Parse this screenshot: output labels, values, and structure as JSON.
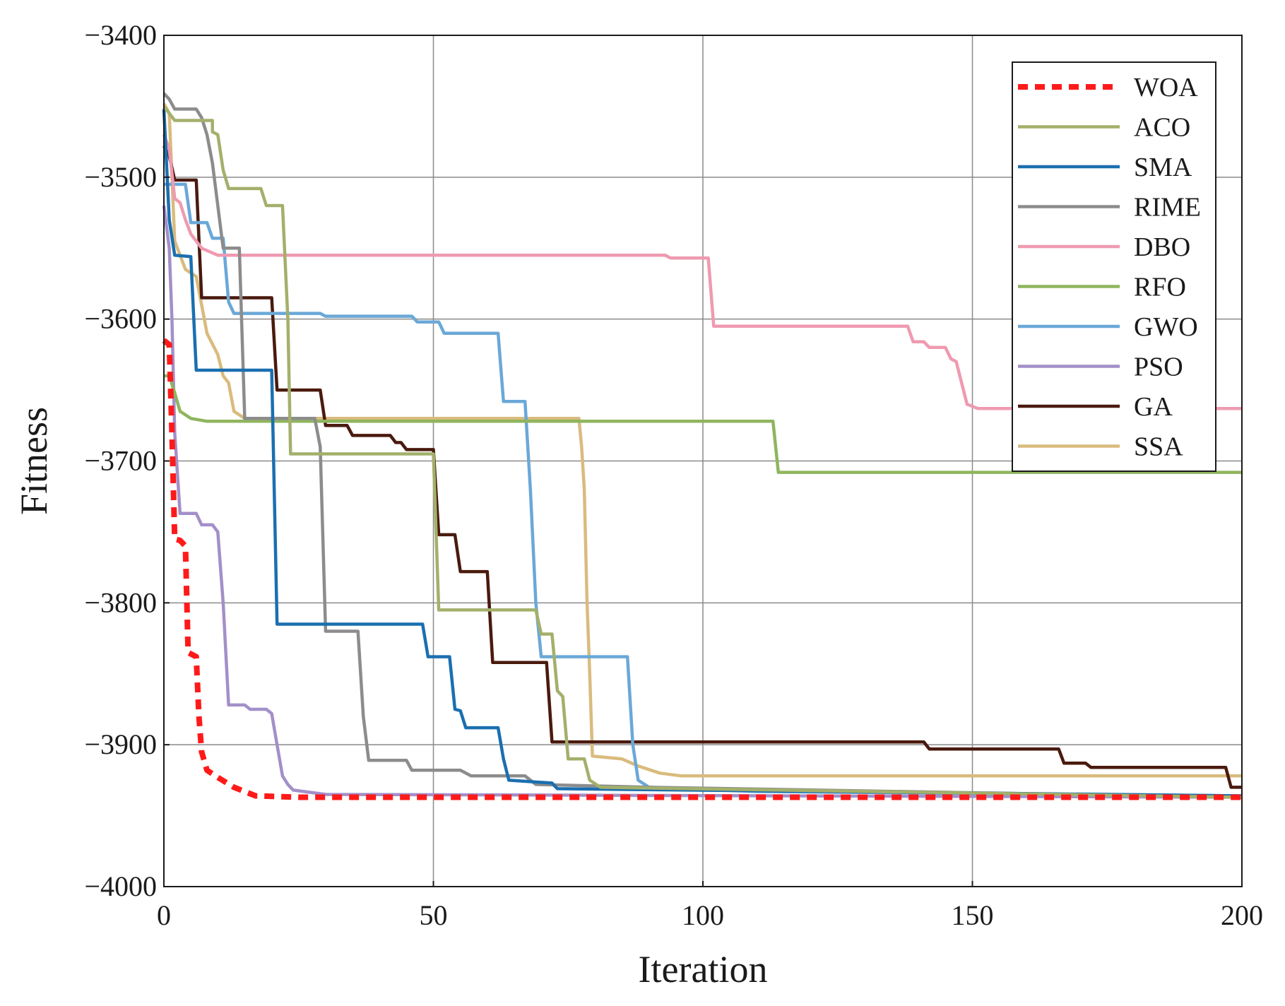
{
  "chart_data": {
    "type": "line",
    "title": "",
    "xlabel": "Iteration",
    "ylabel": "Fitness",
    "xlim": [
      0,
      200
    ],
    "ylim": [
      -4000,
      -3400
    ],
    "grid": true,
    "legend_position": "top-right",
    "x_ticks": [
      {
        "value": 0,
        "label": "0"
      },
      {
        "value": 50,
        "label": "50"
      },
      {
        "value": 100,
        "label": "100"
      },
      {
        "value": 150,
        "label": "150"
      },
      {
        "value": 200,
        "label": "200"
      }
    ],
    "y_ticks": [
      {
        "value": -3400,
        "label": "−3400"
      },
      {
        "value": -3500,
        "label": "−3500"
      },
      {
        "value": -3600,
        "label": "−3600"
      },
      {
        "value": -3700,
        "label": "−3700"
      },
      {
        "value": -3800,
        "label": "−3800"
      },
      {
        "value": -3900,
        "label": "−3900"
      },
      {
        "value": -4000,
        "label": "−4000"
      }
    ],
    "series": [
      {
        "name": "WOA",
        "color": "#ff1a1a",
        "dashed": true,
        "points": [
          [
            0,
            -3615
          ],
          [
            1,
            -3618
          ],
          [
            1.5,
            -3680
          ],
          [
            2,
            -3755
          ],
          [
            3,
            -3756
          ],
          [
            4,
            -3760
          ],
          [
            4.5,
            -3835
          ],
          [
            6,
            -3838
          ],
          [
            6.5,
            -3880
          ],
          [
            7,
            -3905
          ],
          [
            8,
            -3918
          ],
          [
            10,
            -3923
          ],
          [
            13,
            -3930
          ],
          [
            17,
            -3936
          ],
          [
            25,
            -3937
          ],
          [
            200,
            -3937
          ]
        ]
      },
      {
        "name": "ACO",
        "color": "#a3b06b",
        "dashed": false,
        "points": [
          [
            0,
            -3450
          ],
          [
            2,
            -3460
          ],
          [
            9,
            -3460
          ],
          [
            9,
            -3468
          ],
          [
            10,
            -3470
          ],
          [
            11,
            -3495
          ],
          [
            12,
            -3508
          ],
          [
            18,
            -3508
          ],
          [
            19,
            -3520
          ],
          [
            22,
            -3520
          ],
          [
            23,
            -3600
          ],
          [
            23.5,
            -3695
          ],
          [
            50,
            -3695
          ],
          [
            51,
            -3805
          ],
          [
            69,
            -3805
          ],
          [
            70,
            -3822
          ],
          [
            72,
            -3822
          ],
          [
            73,
            -3862
          ],
          [
            74,
            -3866
          ],
          [
            75,
            -3910
          ],
          [
            78,
            -3910
          ],
          [
            79,
            -3925
          ],
          [
            81,
            -3930
          ],
          [
            200,
            -3937
          ]
        ]
      },
      {
        "name": "SMA",
        "color": "#1a6fb0",
        "dashed": false,
        "points": [
          [
            0,
            -3452
          ],
          [
            1,
            -3530
          ],
          [
            2,
            -3555
          ],
          [
            5,
            -3556
          ],
          [
            6,
            -3636
          ],
          [
            20,
            -3636
          ],
          [
            21,
            -3815
          ],
          [
            48,
            -3815
          ],
          [
            49,
            -3838
          ],
          [
            53,
            -3838
          ],
          [
            54,
            -3875
          ],
          [
            55,
            -3876
          ],
          [
            56,
            -3888
          ],
          [
            62,
            -3888
          ],
          [
            63,
            -3910
          ],
          [
            64,
            -3925
          ],
          [
            72,
            -3927
          ],
          [
            73,
            -3931
          ],
          [
            200,
            -3936
          ]
        ]
      },
      {
        "name": "RIME",
        "color": "#8c8c8c",
        "dashed": false,
        "points": [
          [
            0,
            -3441
          ],
          [
            1,
            -3445
          ],
          [
            2,
            -3452
          ],
          [
            6,
            -3452
          ],
          [
            7,
            -3458
          ],
          [
            8,
            -3470
          ],
          [
            9,
            -3490
          ],
          [
            10,
            -3520
          ],
          [
            11,
            -3550
          ],
          [
            14,
            -3550
          ],
          [
            15,
            -3670
          ],
          [
            28,
            -3670
          ],
          [
            29,
            -3690
          ],
          [
            30,
            -3820
          ],
          [
            33,
            -3820
          ],
          [
            36,
            -3820
          ],
          [
            37,
            -3880
          ],
          [
            38,
            -3911
          ],
          [
            45,
            -3911
          ],
          [
            46,
            -3918
          ],
          [
            55,
            -3918
          ],
          [
            57,
            -3922
          ],
          [
            67,
            -3922
          ],
          [
            69,
            -3928
          ],
          [
            90,
            -3930
          ],
          [
            200,
            -3937
          ]
        ]
      },
      {
        "name": "DBO",
        "color": "#ef9ab0",
        "dashed": false,
        "points": [
          [
            0,
            -3470
          ],
          [
            1,
            -3480
          ],
          [
            2,
            -3515
          ],
          [
            3,
            -3518
          ],
          [
            4,
            -3530
          ],
          [
            5,
            -3540
          ],
          [
            7,
            -3550
          ],
          [
            10,
            -3555
          ],
          [
            93,
            -3555
          ],
          [
            94,
            -3557
          ],
          [
            101,
            -3557
          ],
          [
            102,
            -3605
          ],
          [
            138,
            -3605
          ],
          [
            139,
            -3616
          ],
          [
            141,
            -3616
          ],
          [
            142,
            -3620
          ],
          [
            145,
            -3620
          ],
          [
            146,
            -3628
          ],
          [
            147,
            -3630
          ],
          [
            149,
            -3660
          ],
          [
            151,
            -3663
          ],
          [
            200,
            -3663
          ]
        ]
      },
      {
        "name": "RFO",
        "color": "#8fb55e",
        "dashed": false,
        "points": [
          [
            0,
            -3640
          ],
          [
            1,
            -3640
          ],
          [
            2,
            -3652
          ],
          [
            3,
            -3665
          ],
          [
            5,
            -3670
          ],
          [
            8,
            -3672
          ],
          [
            113,
            -3672
          ],
          [
            114,
            -3708
          ],
          [
            200,
            -3708
          ]
        ]
      },
      {
        "name": "GWO",
        "color": "#6aa8d8",
        "dashed": false,
        "points": [
          [
            0,
            -3505
          ],
          [
            4,
            -3505
          ],
          [
            5,
            -3532
          ],
          [
            8,
            -3532
          ],
          [
            9,
            -3543
          ],
          [
            11,
            -3543
          ],
          [
            12,
            -3588
          ],
          [
            13,
            -3596
          ],
          [
            29,
            -3596
          ],
          [
            30,
            -3598
          ],
          [
            46,
            -3598
          ],
          [
            47,
            -3602
          ],
          [
            51,
            -3602
          ],
          [
            52,
            -3610
          ],
          [
            62,
            -3610
          ],
          [
            63,
            -3658
          ],
          [
            67,
            -3658
          ],
          [
            68,
            -3720
          ],
          [
            69,
            -3800
          ],
          [
            70,
            -3838
          ],
          [
            86,
            -3838
          ],
          [
            87,
            -3900
          ],
          [
            88,
            -3925
          ],
          [
            90,
            -3930
          ],
          [
            110,
            -3933
          ],
          [
            200,
            -3936
          ]
        ]
      },
      {
        "name": "PSO",
        "color": "#a38fc9",
        "dashed": false,
        "points": [
          [
            0,
            -3520
          ],
          [
            1,
            -3550
          ],
          [
            1.5,
            -3600
          ],
          [
            2,
            -3680
          ],
          [
            3,
            -3737
          ],
          [
            6,
            -3737
          ],
          [
            7,
            -3745
          ],
          [
            9,
            -3745
          ],
          [
            10,
            -3750
          ],
          [
            11,
            -3800
          ],
          [
            12,
            -3872
          ],
          [
            15,
            -3872
          ],
          [
            16,
            -3875
          ],
          [
            19,
            -3875
          ],
          [
            20,
            -3878
          ],
          [
            21,
            -3900
          ],
          [
            22,
            -3922
          ],
          [
            23,
            -3928
          ],
          [
            24,
            -3932
          ],
          [
            30,
            -3935
          ],
          [
            200,
            -3937
          ]
        ]
      },
      {
        "name": "GA",
        "color": "#4a1a0e",
        "dashed": false,
        "points": [
          [
            0,
            -3478
          ],
          [
            1,
            -3485
          ],
          [
            2,
            -3502
          ],
          [
            6,
            -3502
          ],
          [
            7,
            -3585
          ],
          [
            20,
            -3585
          ],
          [
            21,
            -3650
          ],
          [
            29,
            -3650
          ],
          [
            30,
            -3675
          ],
          [
            34,
            -3675
          ],
          [
            35,
            -3682
          ],
          [
            42,
            -3682
          ],
          [
            43,
            -3687
          ],
          [
            44,
            -3687
          ],
          [
            45,
            -3692
          ],
          [
            50,
            -3692
          ],
          [
            51,
            -3752
          ],
          [
            54,
            -3752
          ],
          [
            55,
            -3778
          ],
          [
            60,
            -3778
          ],
          [
            61,
            -3842
          ],
          [
            71,
            -3842
          ],
          [
            72,
            -3898
          ],
          [
            141,
            -3898
          ],
          [
            142,
            -3903
          ],
          [
            166,
            -3903
          ],
          [
            167,
            -3913
          ],
          [
            171,
            -3913
          ],
          [
            172,
            -3916
          ],
          [
            197,
            -3916
          ],
          [
            198,
            -3930
          ],
          [
            200,
            -3930
          ]
        ]
      },
      {
        "name": "SSA",
        "color": "#d9bb7d",
        "dashed": false,
        "points": [
          [
            0,
            -3448
          ],
          [
            1,
            -3455
          ],
          [
            1.5,
            -3500
          ],
          [
            2,
            -3545
          ],
          [
            3,
            -3555
          ],
          [
            4,
            -3565
          ],
          [
            6,
            -3570
          ],
          [
            7,
            -3590
          ],
          [
            8,
            -3610
          ],
          [
            10,
            -3625
          ],
          [
            11,
            -3640
          ],
          [
            12,
            -3645
          ],
          [
            13,
            -3665
          ],
          [
            15,
            -3670
          ],
          [
            77,
            -3670
          ],
          [
            77.5,
            -3690
          ],
          [
            78,
            -3720
          ],
          [
            78.5,
            -3800
          ],
          [
            79,
            -3850
          ],
          [
            79.5,
            -3908
          ],
          [
            85,
            -3910
          ],
          [
            88,
            -3915
          ],
          [
            92,
            -3920
          ],
          [
            96,
            -3922
          ],
          [
            200,
            -3922
          ]
        ]
      }
    ]
  }
}
